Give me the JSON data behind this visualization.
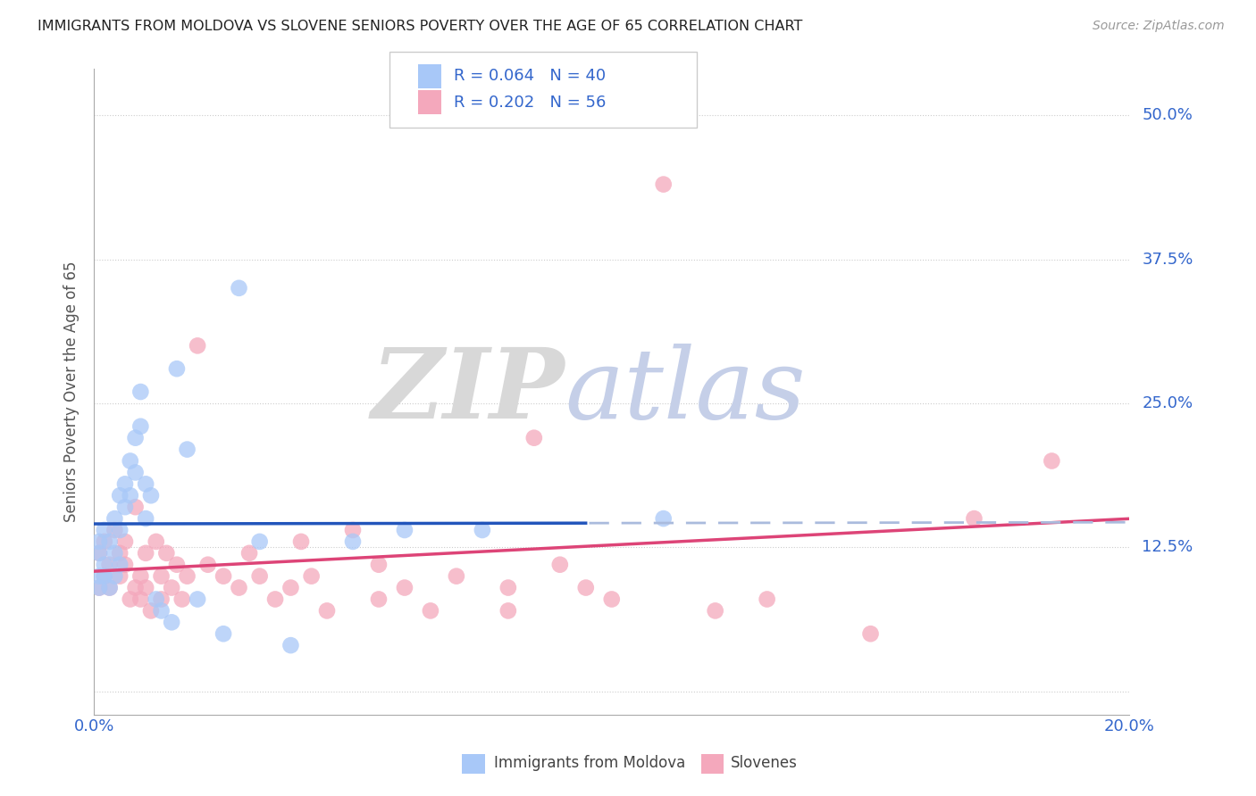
{
  "title": "IMMIGRANTS FROM MOLDOVA VS SLOVENE SENIORS POVERTY OVER THE AGE OF 65 CORRELATION CHART",
  "source": "Source: ZipAtlas.com",
  "ylabel": "Seniors Poverty Over the Age of 65",
  "xlim": [
    0.0,
    0.2
  ],
  "ylim": [
    -0.02,
    0.54
  ],
  "yticks": [
    0.0,
    0.125,
    0.25,
    0.375,
    0.5
  ],
  "ytick_labels": [
    "",
    "12.5%",
    "25.0%",
    "37.5%",
    "50.0%"
  ],
  "xticks": [
    0.0,
    0.04,
    0.08,
    0.12,
    0.16,
    0.2
  ],
  "xtick_labels": [
    "0.0%",
    "",
    "",
    "",
    "",
    "20.0%"
  ],
  "color_blue": "#a8c8f8",
  "color_pink": "#f4a8bc",
  "line_color_blue_solid": "#2255bb",
  "line_color_blue_dash": "#aabbdd",
  "line_color_pink": "#dd4477",
  "legend_text_color": "#3366cc",
  "background_color": "#ffffff",
  "blue_scatter_x": [
    0.001,
    0.001,
    0.001,
    0.001,
    0.002,
    0.002,
    0.002,
    0.003,
    0.003,
    0.004,
    0.004,
    0.004,
    0.005,
    0.005,
    0.005,
    0.006,
    0.006,
    0.007,
    0.007,
    0.008,
    0.008,
    0.009,
    0.009,
    0.01,
    0.01,
    0.011,
    0.012,
    0.013,
    0.015,
    0.016,
    0.018,
    0.02,
    0.025,
    0.028,
    0.032,
    0.038,
    0.05,
    0.06,
    0.075,
    0.11
  ],
  "blue_scatter_y": [
    0.13,
    0.12,
    0.1,
    0.09,
    0.14,
    0.11,
    0.1,
    0.13,
    0.09,
    0.15,
    0.12,
    0.1,
    0.17,
    0.14,
    0.11,
    0.18,
    0.16,
    0.2,
    0.17,
    0.22,
    0.19,
    0.26,
    0.23,
    0.18,
    0.15,
    0.17,
    0.08,
    0.07,
    0.06,
    0.28,
    0.21,
    0.08,
    0.05,
    0.35,
    0.13,
    0.04,
    0.13,
    0.14,
    0.14,
    0.15
  ],
  "pink_scatter_x": [
    0.001,
    0.001,
    0.002,
    0.002,
    0.003,
    0.003,
    0.004,
    0.005,
    0.005,
    0.006,
    0.006,
    0.007,
    0.008,
    0.008,
    0.009,
    0.009,
    0.01,
    0.01,
    0.011,
    0.012,
    0.013,
    0.013,
    0.014,
    0.015,
    0.016,
    0.017,
    0.018,
    0.02,
    0.022,
    0.025,
    0.028,
    0.03,
    0.032,
    0.035,
    0.038,
    0.04,
    0.042,
    0.045,
    0.05,
    0.055,
    0.055,
    0.06,
    0.065,
    0.07,
    0.08,
    0.08,
    0.085,
    0.09,
    0.095,
    0.1,
    0.11,
    0.12,
    0.13,
    0.15,
    0.17,
    0.185
  ],
  "pink_scatter_y": [
    0.12,
    0.09,
    0.13,
    0.1,
    0.11,
    0.09,
    0.14,
    0.12,
    0.1,
    0.13,
    0.11,
    0.08,
    0.16,
    0.09,
    0.1,
    0.08,
    0.12,
    0.09,
    0.07,
    0.13,
    0.1,
    0.08,
    0.12,
    0.09,
    0.11,
    0.08,
    0.1,
    0.3,
    0.11,
    0.1,
    0.09,
    0.12,
    0.1,
    0.08,
    0.09,
    0.13,
    0.1,
    0.07,
    0.14,
    0.11,
    0.08,
    0.09,
    0.07,
    0.1,
    0.09,
    0.07,
    0.22,
    0.11,
    0.09,
    0.08,
    0.44,
    0.07,
    0.08,
    0.05,
    0.15,
    0.2
  ],
  "blue_line_x_start": 0.0,
  "blue_line_x_solid_end": 0.095,
  "blue_line_x_end": 0.2,
  "pink_line_x_start": 0.0,
  "pink_line_x_end": 0.2,
  "blue_line_intercept": 0.135,
  "blue_line_slope": 0.1,
  "pink_line_intercept": 0.09,
  "pink_line_slope": 0.65
}
